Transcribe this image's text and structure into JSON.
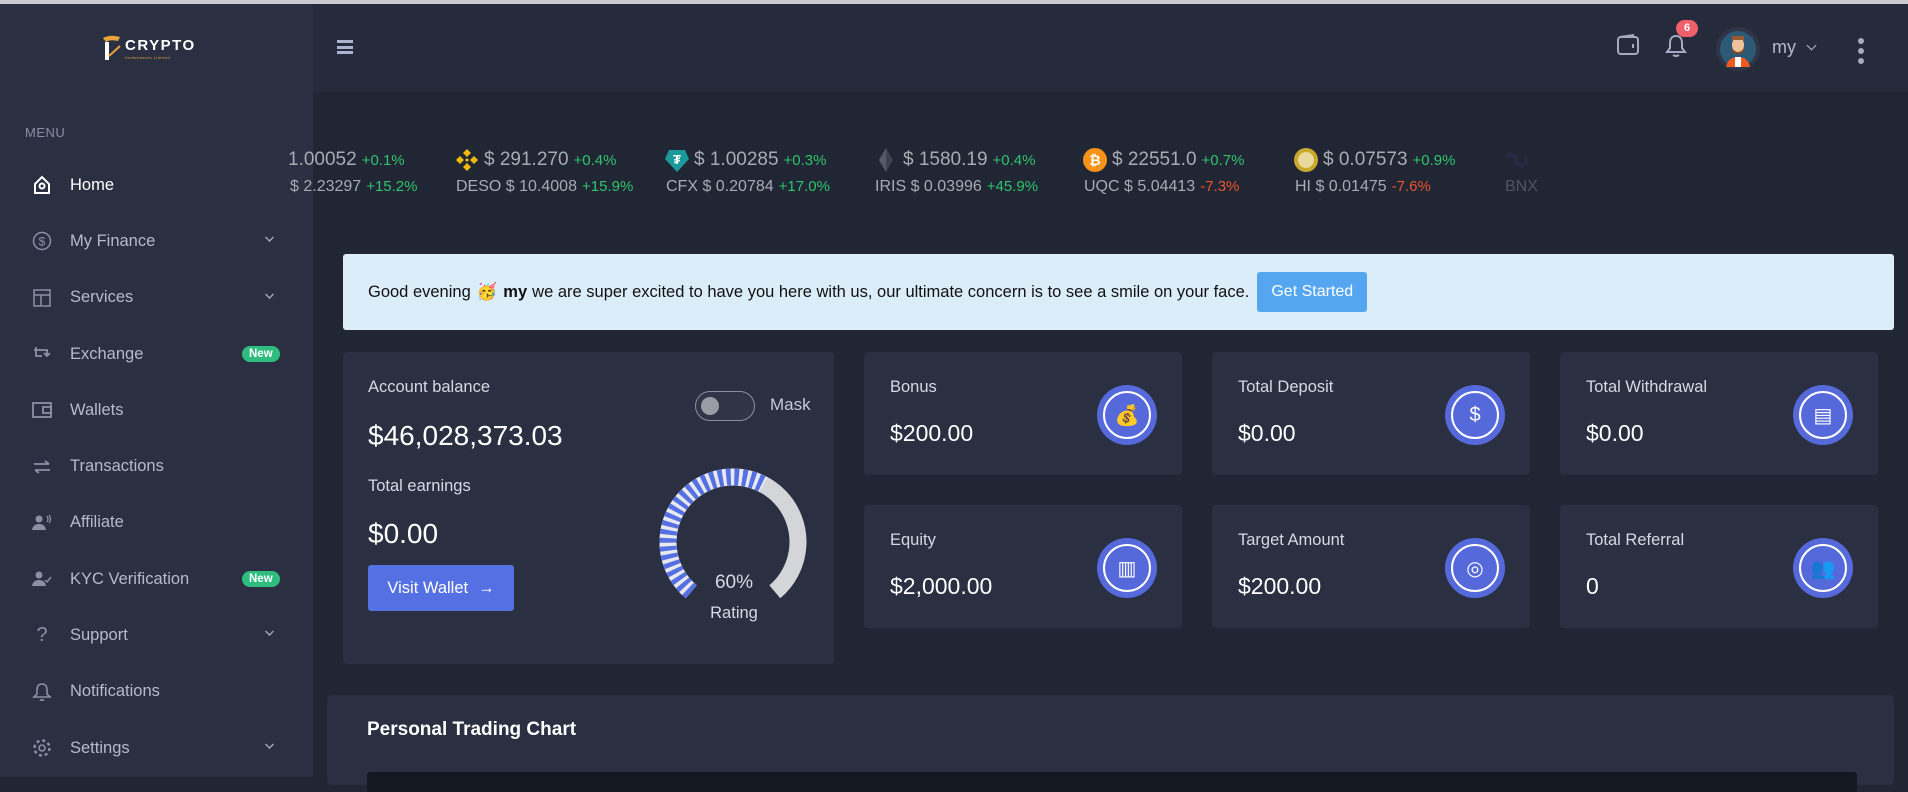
{
  "brand": {
    "name": "CRYPTO",
    "tagline": "Investments Limited"
  },
  "sidebar": {
    "menu_label": "MENU",
    "items": [
      {
        "label": "Home",
        "icon": "home-icon",
        "active": true
      },
      {
        "label": "My Finance",
        "icon": "dollar-circle-icon",
        "chevron": true
      },
      {
        "label": "Services",
        "icon": "layout-icon",
        "chevron": true
      },
      {
        "label": "Exchange",
        "icon": "repeat-icon",
        "badge": "New"
      },
      {
        "label": "Wallets",
        "icon": "wallet-icon"
      },
      {
        "label": "Transactions",
        "icon": "arrows-swap-icon"
      },
      {
        "label": "Affiliate",
        "icon": "user-voice-icon"
      },
      {
        "label": "KYC Verification",
        "icon": "user-check-icon",
        "badge": "New"
      },
      {
        "label": "Support",
        "icon": "question-icon",
        "chevron": true
      },
      {
        "label": "Notifications",
        "icon": "bell-icon"
      },
      {
        "label": "Settings",
        "icon": "gear-icon",
        "chevron": true
      }
    ]
  },
  "header": {
    "notification_count": "6",
    "username": "my"
  },
  "ticker": [
    {
      "price": "1.00052",
      "change": "+0.1%",
      "sub_name": "",
      "sub_price": "$ 2.23297",
      "sub_change": "+15.2%",
      "icon": "none",
      "color": ""
    },
    {
      "price": "$ 291.270",
      "change": "+0.4%",
      "sub_name": "DESO",
      "sub_price": "$ 10.4008",
      "sub_change": "+15.9%",
      "icon": "binance-icon",
      "color": "#f0b90b"
    },
    {
      "price": "$ 1.00285",
      "change": "+0.3%",
      "sub_name": "CFX",
      "sub_price": "$ 0.20784",
      "sub_change": "+17.0%",
      "icon": "tether-icon",
      "color": "#1a9a9a"
    },
    {
      "price": "$ 1580.19",
      "change": "+0.4%",
      "sub_name": "IRIS",
      "sub_price": "$ 0.03996",
      "sub_change": "+45.9%",
      "icon": "ethereum-icon",
      "color": "#555a66"
    },
    {
      "price": "$ 22551.0",
      "change": "+0.7%",
      "sub_name": "UQC",
      "sub_price": "$ 5.04413",
      "sub_change": "-7.3%",
      "icon": "bitcoin-icon",
      "color": "#f7931a"
    },
    {
      "price": "$ 0.07573",
      "change": "+0.9%",
      "sub_name": "HI",
      "sub_price": "$ 0.01475",
      "sub_change": "-7.6%",
      "icon": "dogecoin-icon",
      "color": "#c9a92c"
    },
    {
      "price": "",
      "change": "",
      "sub_name": "BNX",
      "sub_price": "",
      "sub_change": "",
      "icon": "polygon-icon",
      "color": "#3a3470"
    }
  ],
  "banner": {
    "greeting": "Good evening",
    "emoji": "🥳",
    "name": "my",
    "message": "we are super excited to have you here with us, our ultimate concern is to see a smile on your face.",
    "button": "Get Started"
  },
  "account": {
    "balance_label": "Account balance",
    "balance": "$46,028,373.03",
    "earnings_label": "Total earnings",
    "earnings": "$0.00",
    "button": "Visit Wallet",
    "mask_label": "Mask",
    "mask_on": false,
    "rating_value": 60,
    "rating_text": "60%",
    "rating_label": "Rating"
  },
  "stats": [
    {
      "label": "Bonus",
      "value": "$200.00",
      "icon": "money-bag-star-icon"
    },
    {
      "label": "Total Deposit",
      "value": "$0.00",
      "icon": "money-bag-icon"
    },
    {
      "label": "Total Withdrawal",
      "value": "$0.00",
      "icon": "cash-stack-icon"
    },
    {
      "label": "Equity",
      "value": "$2,000.00",
      "icon": "bar-chart-icon"
    },
    {
      "label": "Target Amount",
      "value": "$200.00",
      "icon": "target-icon"
    },
    {
      "label": "Total Referral",
      "value": "0",
      "icon": "team-icon"
    }
  ],
  "trading_chart": {
    "title": "Personal Trading Chart"
  },
  "colors": {
    "accent": "#5570e3",
    "up": "#2fc36c",
    "down": "#e6542c",
    "badge": "#2ebd7f",
    "banner_button": "#55a6f0"
  }
}
